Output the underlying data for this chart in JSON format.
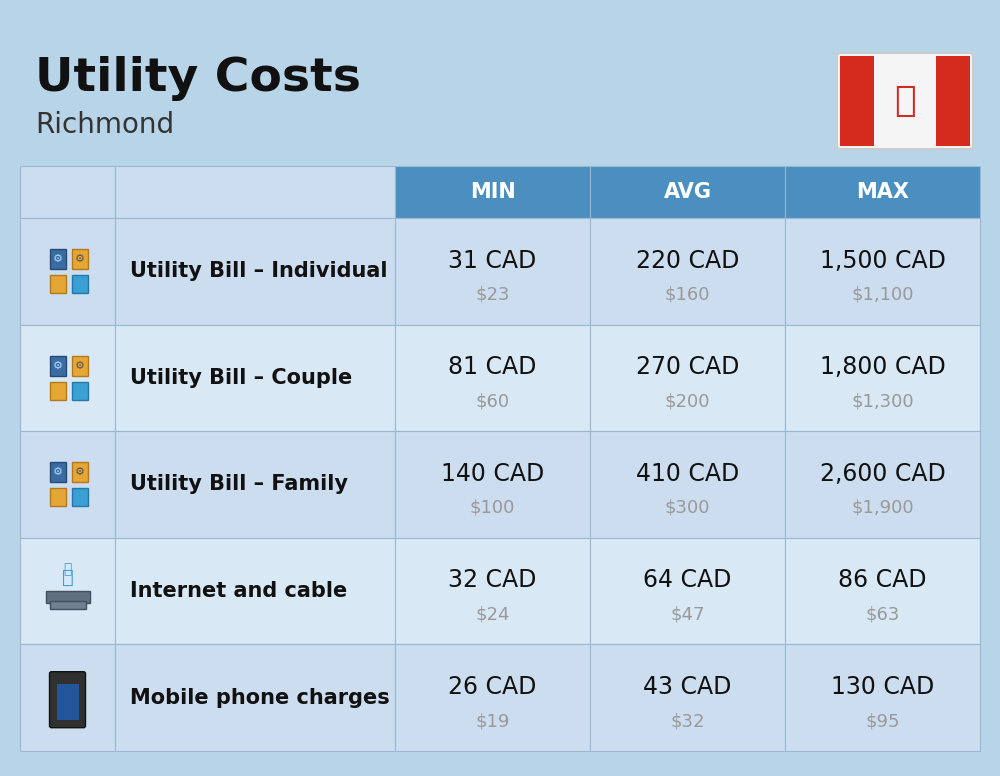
{
  "title": "Utility Costs",
  "subtitle": "Richmond",
  "bg_color": "#b8d4e8",
  "header_bg_color": "#4a8fc0",
  "header_text_color": "#ffffff",
  "row_bg_odd": "#ccddf0",
  "row_bg_even": "#d8e8f4",
  "border_color": "#9ab8d0",
  "usd_color": "#999999",
  "col_headers": [
    "MIN",
    "AVG",
    "MAX"
  ],
  "rows": [
    {
      "label": "Utility Bill – Individual",
      "min_cad": "31 CAD",
      "min_usd": "$23",
      "avg_cad": "220 CAD",
      "avg_usd": "$160",
      "max_cad": "1,500 CAD",
      "max_usd": "$1,100"
    },
    {
      "label": "Utility Bill – Couple",
      "min_cad": "81 CAD",
      "min_usd": "$60",
      "avg_cad": "270 CAD",
      "avg_usd": "$200",
      "max_cad": "1,800 CAD",
      "max_usd": "$1,300"
    },
    {
      "label": "Utility Bill – Family",
      "min_cad": "140 CAD",
      "min_usd": "$100",
      "avg_cad": "410 CAD",
      "avg_usd": "$300",
      "max_cad": "2,600 CAD",
      "max_usd": "$1,900"
    },
    {
      "label": "Internet and cable",
      "min_cad": "32 CAD",
      "min_usd": "$24",
      "avg_cad": "64 CAD",
      "avg_usd": "$47",
      "max_cad": "86 CAD",
      "max_usd": "$63"
    },
    {
      "label": "Mobile phone charges",
      "min_cad": "26 CAD",
      "min_usd": "$19",
      "avg_cad": "43 CAD",
      "avg_usd": "$32",
      "max_cad": "130 CAD",
      "max_usd": "$95"
    }
  ],
  "title_fontsize": 34,
  "subtitle_fontsize": 20,
  "header_fontsize": 15,
  "label_fontsize": 15,
  "value_fontsize": 17,
  "usd_fontsize": 13,
  "flag_red": "#d52b1e"
}
